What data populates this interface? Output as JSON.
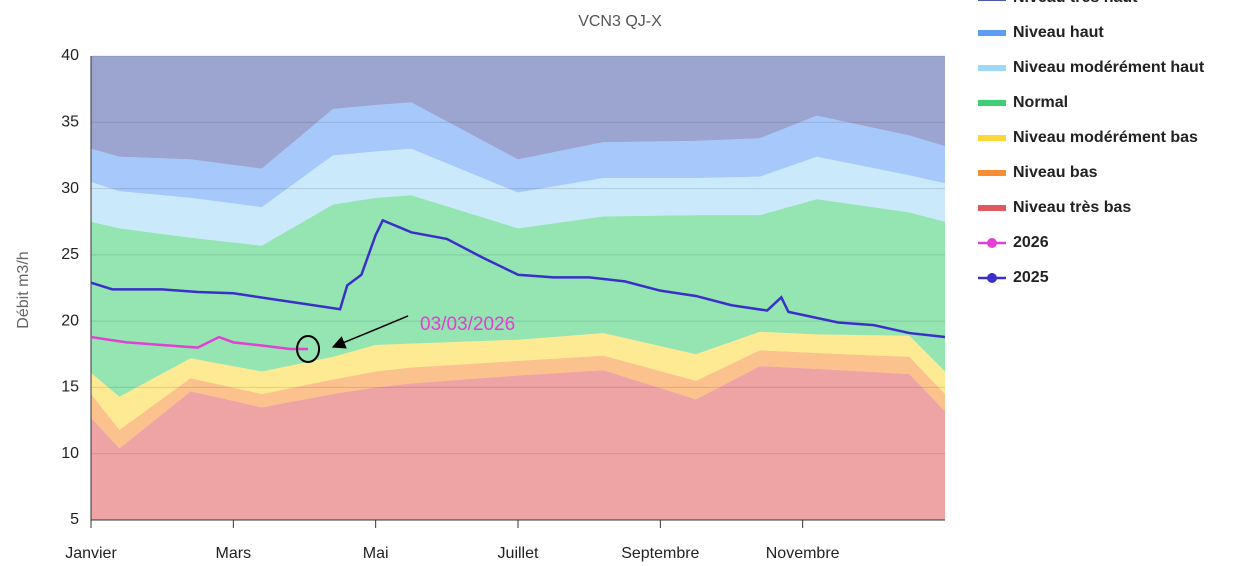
{
  "chart_data": {
    "type": "area",
    "subtitle": "VCN3 QJ-X",
    "y_label": "Débit   m3/h",
    "annotation": "03/03/2026",
    "xlim": [
      0,
      12
    ],
    "xticks": [
      {
        "value": 0,
        "label": "Janvier"
      },
      {
        "value": 2,
        "label": "Mars"
      },
      {
        "value": 4,
        "label": "Mai"
      },
      {
        "value": 6,
        "label": "Juillet"
      },
      {
        "value": 8,
        "label": "Septembre"
      },
      {
        "value": 10,
        "label": "Novembre"
      }
    ],
    "ylim": [
      5,
      40
    ],
    "yticks": [
      5,
      10,
      15,
      20,
      25,
      30,
      35,
      40
    ],
    "grid": true,
    "x": [
      0,
      0.4,
      1.4,
      2.4,
      3.4,
      4,
      4.5,
      6,
      7.2,
      8.5,
      9.4,
      10.2,
      11.5,
      12
    ],
    "series": [
      {
        "name": "Niveau très haut",
        "type": "area",
        "color": "#4b5ba8",
        "values": [
          7.0,
          7.6,
          7.8,
          8.5,
          4.0,
          3.7,
          3.5,
          7.8,
          6.5,
          6.4,
          6.2,
          4.5,
          6.0,
          6.8
        ]
      },
      {
        "name": "Niveau haut",
        "type": "area",
        "color": "#5e9bf5",
        "values": [
          2.5,
          2.6,
          2.9,
          2.9,
          3.5,
          3.5,
          3.5,
          2.5,
          2.7,
          2.8,
          2.9,
          3.1,
          3.0,
          2.8
        ]
      },
      {
        "name": "Niveau modérément haut",
        "type": "area",
        "color": "#9ed8f8",
        "values": [
          3.0,
          2.8,
          3.0,
          2.9,
          3.7,
          3.5,
          3.5,
          2.7,
          2.9,
          2.8,
          2.9,
          3.2,
          2.8,
          2.9
        ]
      },
      {
        "name": "Normal",
        "type": "area",
        "color": "#3dcf72",
        "values": [
          11.4,
          12.7,
          9.1,
          9.5,
          11.5,
          11.1,
          11.2,
          8.4,
          8.8,
          10.5,
          8.8,
          10.2,
          9.3,
          11.3
        ]
      },
      {
        "name": "Niveau modérément bas",
        "type": "area",
        "color": "#fdd83a",
        "values": [
          1.6,
          2.5,
          1.5,
          1.7,
          1.7,
          2.0,
          1.8,
          1.6,
          1.7,
          2.0,
          1.4,
          1.4,
          1.6,
          1.7
        ]
      },
      {
        "name": "Niveau bas",
        "type": "area",
        "color": "#f78f32",
        "values": [
          1.8,
          1.4,
          1.0,
          1.0,
          1.1,
          1.2,
          1.2,
          1.1,
          1.1,
          1.4,
          1.2,
          1.2,
          1.3,
          1.3
        ]
      },
      {
        "name": "Niveau très bas",
        "type": "area",
        "color": "#e0585b",
        "values": [
          12.7,
          10.4,
          14.7,
          13.5,
          14.5,
          15.0,
          15.3,
          15.9,
          16.3,
          14.1,
          16.6,
          16.4,
          16.0,
          13.2
        ]
      },
      {
        "name": "2026",
        "type": "line",
        "color": "#e23fd3",
        "x": [
          0,
          0.5,
          1,
          1.5,
          1.8,
          2,
          2.5,
          2.8,
          3.05
        ],
        "values": [
          18.8,
          18.4,
          18.2,
          18.0,
          18.8,
          18.4,
          18.1,
          17.9,
          17.9
        ]
      },
      {
        "name": "2025",
        "type": "line",
        "color": "#3a30c8",
        "x": [
          0,
          0.3,
          1,
          1.5,
          2,
          2.5,
          3,
          3.5,
          3.6,
          3.8,
          4,
          4.1,
          4.5,
          5,
          5.5,
          6,
          6.5,
          7,
          7.5,
          8,
          8.5,
          9,
          9.5,
          9.7,
          9.8,
          10.5,
          11,
          11.5,
          12
        ],
        "values": [
          22.9,
          22.4,
          22.4,
          22.2,
          22.1,
          21.7,
          21.3,
          20.9,
          22.7,
          23.5,
          26.5,
          27.6,
          26.7,
          26.2,
          24.8,
          23.5,
          23.3,
          23.3,
          23.0,
          22.3,
          21.9,
          21.2,
          20.8,
          21.8,
          20.7,
          19.9,
          19.7,
          19.1,
          18.8
        ]
      }
    ]
  }
}
